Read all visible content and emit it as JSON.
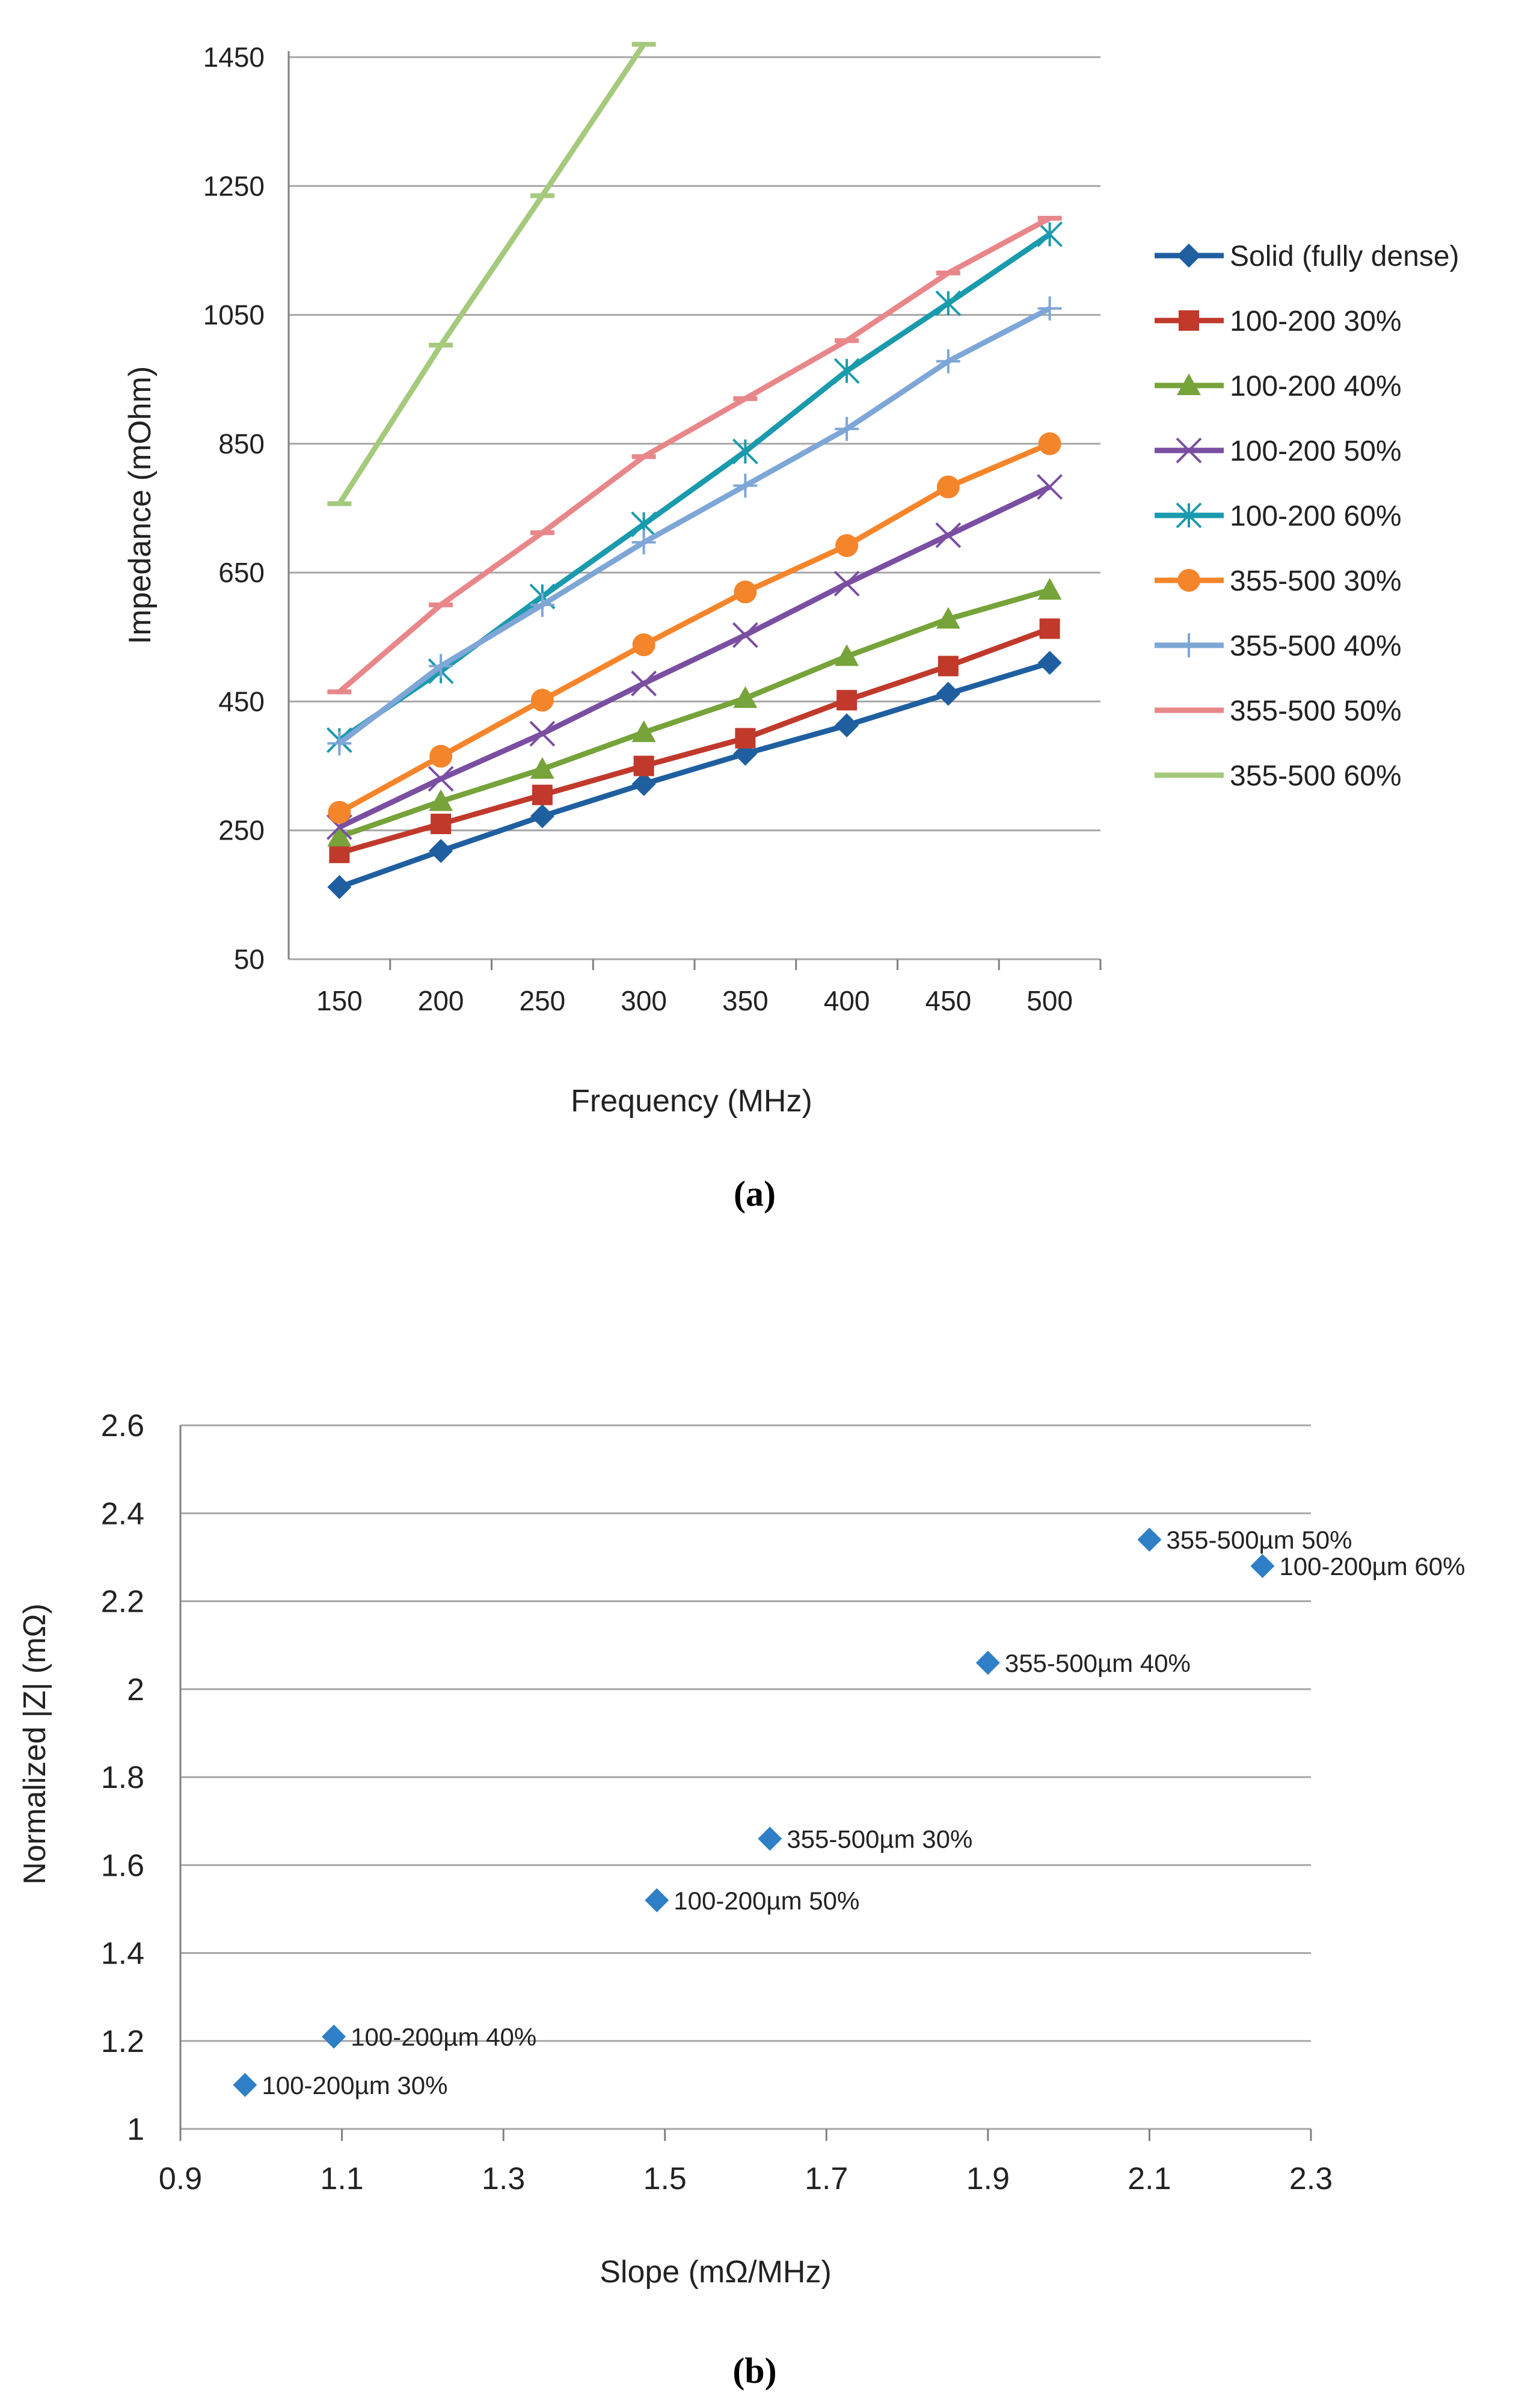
{
  "figure": {
    "caption_a": "(a)",
    "caption_b": "(b)"
  },
  "chart_data": [
    {
      "type": "line",
      "title": "",
      "xlabel": "Frequency (MHz)",
      "ylabel": "Impedance (mOhm)",
      "x": [
        150,
        200,
        250,
        300,
        350,
        400,
        450,
        500
      ],
      "ylim": [
        50,
        1450
      ],
      "yticks": [
        50,
        250,
        450,
        650,
        850,
        1050,
        1250,
        1450
      ],
      "grid": true,
      "legend_position": "right",
      "series": [
        {
          "name": "Solid (fully dense)",
          "color": "#1f5fa0",
          "marker": "diamond",
          "values": [
            162,
            218,
            272,
            322,
            369,
            413,
            462,
            510
          ]
        },
        {
          "name": "100-200 30%",
          "color": "#c0392b",
          "marker": "square",
          "values": [
            215,
            260,
            305,
            350,
            393,
            452,
            505,
            563
          ]
        },
        {
          "name": "100-200 40%",
          "color": "#76a33a",
          "marker": "triangle",
          "values": [
            240,
            295,
            345,
            402,
            455,
            520,
            578,
            623
          ]
        },
        {
          "name": "100-200 50%",
          "color": "#7a4ea1",
          "marker": "x",
          "values": [
            255,
            330,
            400,
            478,
            553,
            633,
            708,
            783
          ]
        },
        {
          "name": "100-200 60%",
          "color": "#1a9aad",
          "marker": "star",
          "values": [
            390,
            497,
            613,
            725,
            838,
            963,
            1068,
            1175
          ]
        },
        {
          "name": "355-500 30%",
          "color": "#f5852b",
          "marker": "circle",
          "values": [
            278,
            365,
            452,
            538,
            620,
            692,
            783,
            850
          ]
        },
        {
          "name": "355-500  40%",
          "color": "#7ea6d6",
          "marker": "plus",
          "values": [
            385,
            505,
            600,
            697,
            785,
            873,
            978,
            1060
          ]
        },
        {
          "name": "355-500 50%",
          "color": "#e8878a",
          "marker": "dash",
          "values": [
            465,
            600,
            712,
            830,
            920,
            1010,
            1115,
            1200
          ]
        },
        {
          "name": "355-500 60%",
          "color": "#a5c97d",
          "marker": "dash",
          "values": [
            757,
            1003,
            1235,
            1485,
            null,
            null,
            null,
            null
          ]
        }
      ]
    },
    {
      "type": "scatter",
      "title": "",
      "xlabel": "Slope (mΩ/MHz)",
      "ylabel": "Normalized |Z| (mΩ)",
      "xlim": [
        0.9,
        2.3
      ],
      "ylim": [
        1,
        2.6
      ],
      "xticks": [
        "0.9",
        "1.1",
        "1.3",
        "1.5",
        "1.7",
        "1.9",
        "2.1",
        "2.3"
      ],
      "yticks": [
        "1",
        "1.2",
        "1.4",
        "1.6",
        "1.8",
        "2",
        "2.2",
        "2.4",
        "2.6"
      ],
      "grid": true,
      "color": "#2e7fc5",
      "points": [
        {
          "label": "100-200µm  30%",
          "x": 0.98,
          "y": 1.1
        },
        {
          "label": "100-200µm  40%",
          "x": 1.09,
          "y": 1.21
        },
        {
          "label": "100-200µm  50%",
          "x": 1.49,
          "y": 1.52
        },
        {
          "label": "355-500µm  30%",
          "x": 1.63,
          "y": 1.66
        },
        {
          "label": "355-500µm  40%",
          "x": 1.9,
          "y": 2.06
        },
        {
          "label": "355-500µm  50%",
          "x": 2.1,
          "y": 2.34
        },
        {
          "label": "100-200µm  60%",
          "x": 2.24,
          "y": 2.28
        }
      ]
    }
  ]
}
